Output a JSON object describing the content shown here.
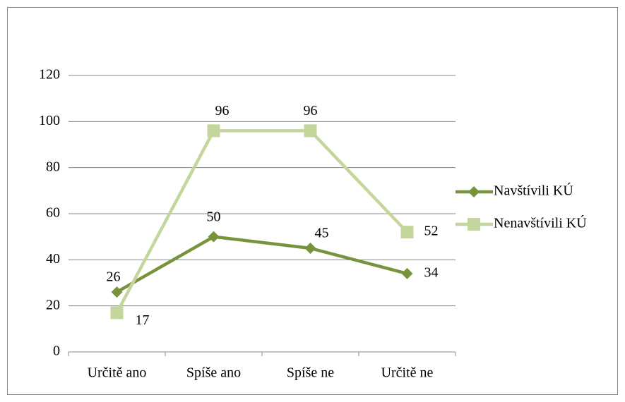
{
  "chart_data": {
    "type": "line",
    "categories": [
      "Určitě ano",
      "Spíše ano",
      "Spíše ne",
      "Určitě ne"
    ],
    "series": [
      {
        "name": "Navštívili KÚ",
        "color": "#77933c",
        "marker": "diamond",
        "values": [
          26,
          50,
          45,
          34
        ]
      },
      {
        "name": "Nenavštívili KÚ",
        "color": "#c3d69b",
        "marker": "square",
        "values": [
          17,
          96,
          96,
          52
        ]
      }
    ],
    "ylim": [
      0,
      120
    ],
    "yticks": [
      0,
      20,
      40,
      60,
      80,
      100,
      120
    ],
    "grid": true,
    "legend": "right"
  }
}
